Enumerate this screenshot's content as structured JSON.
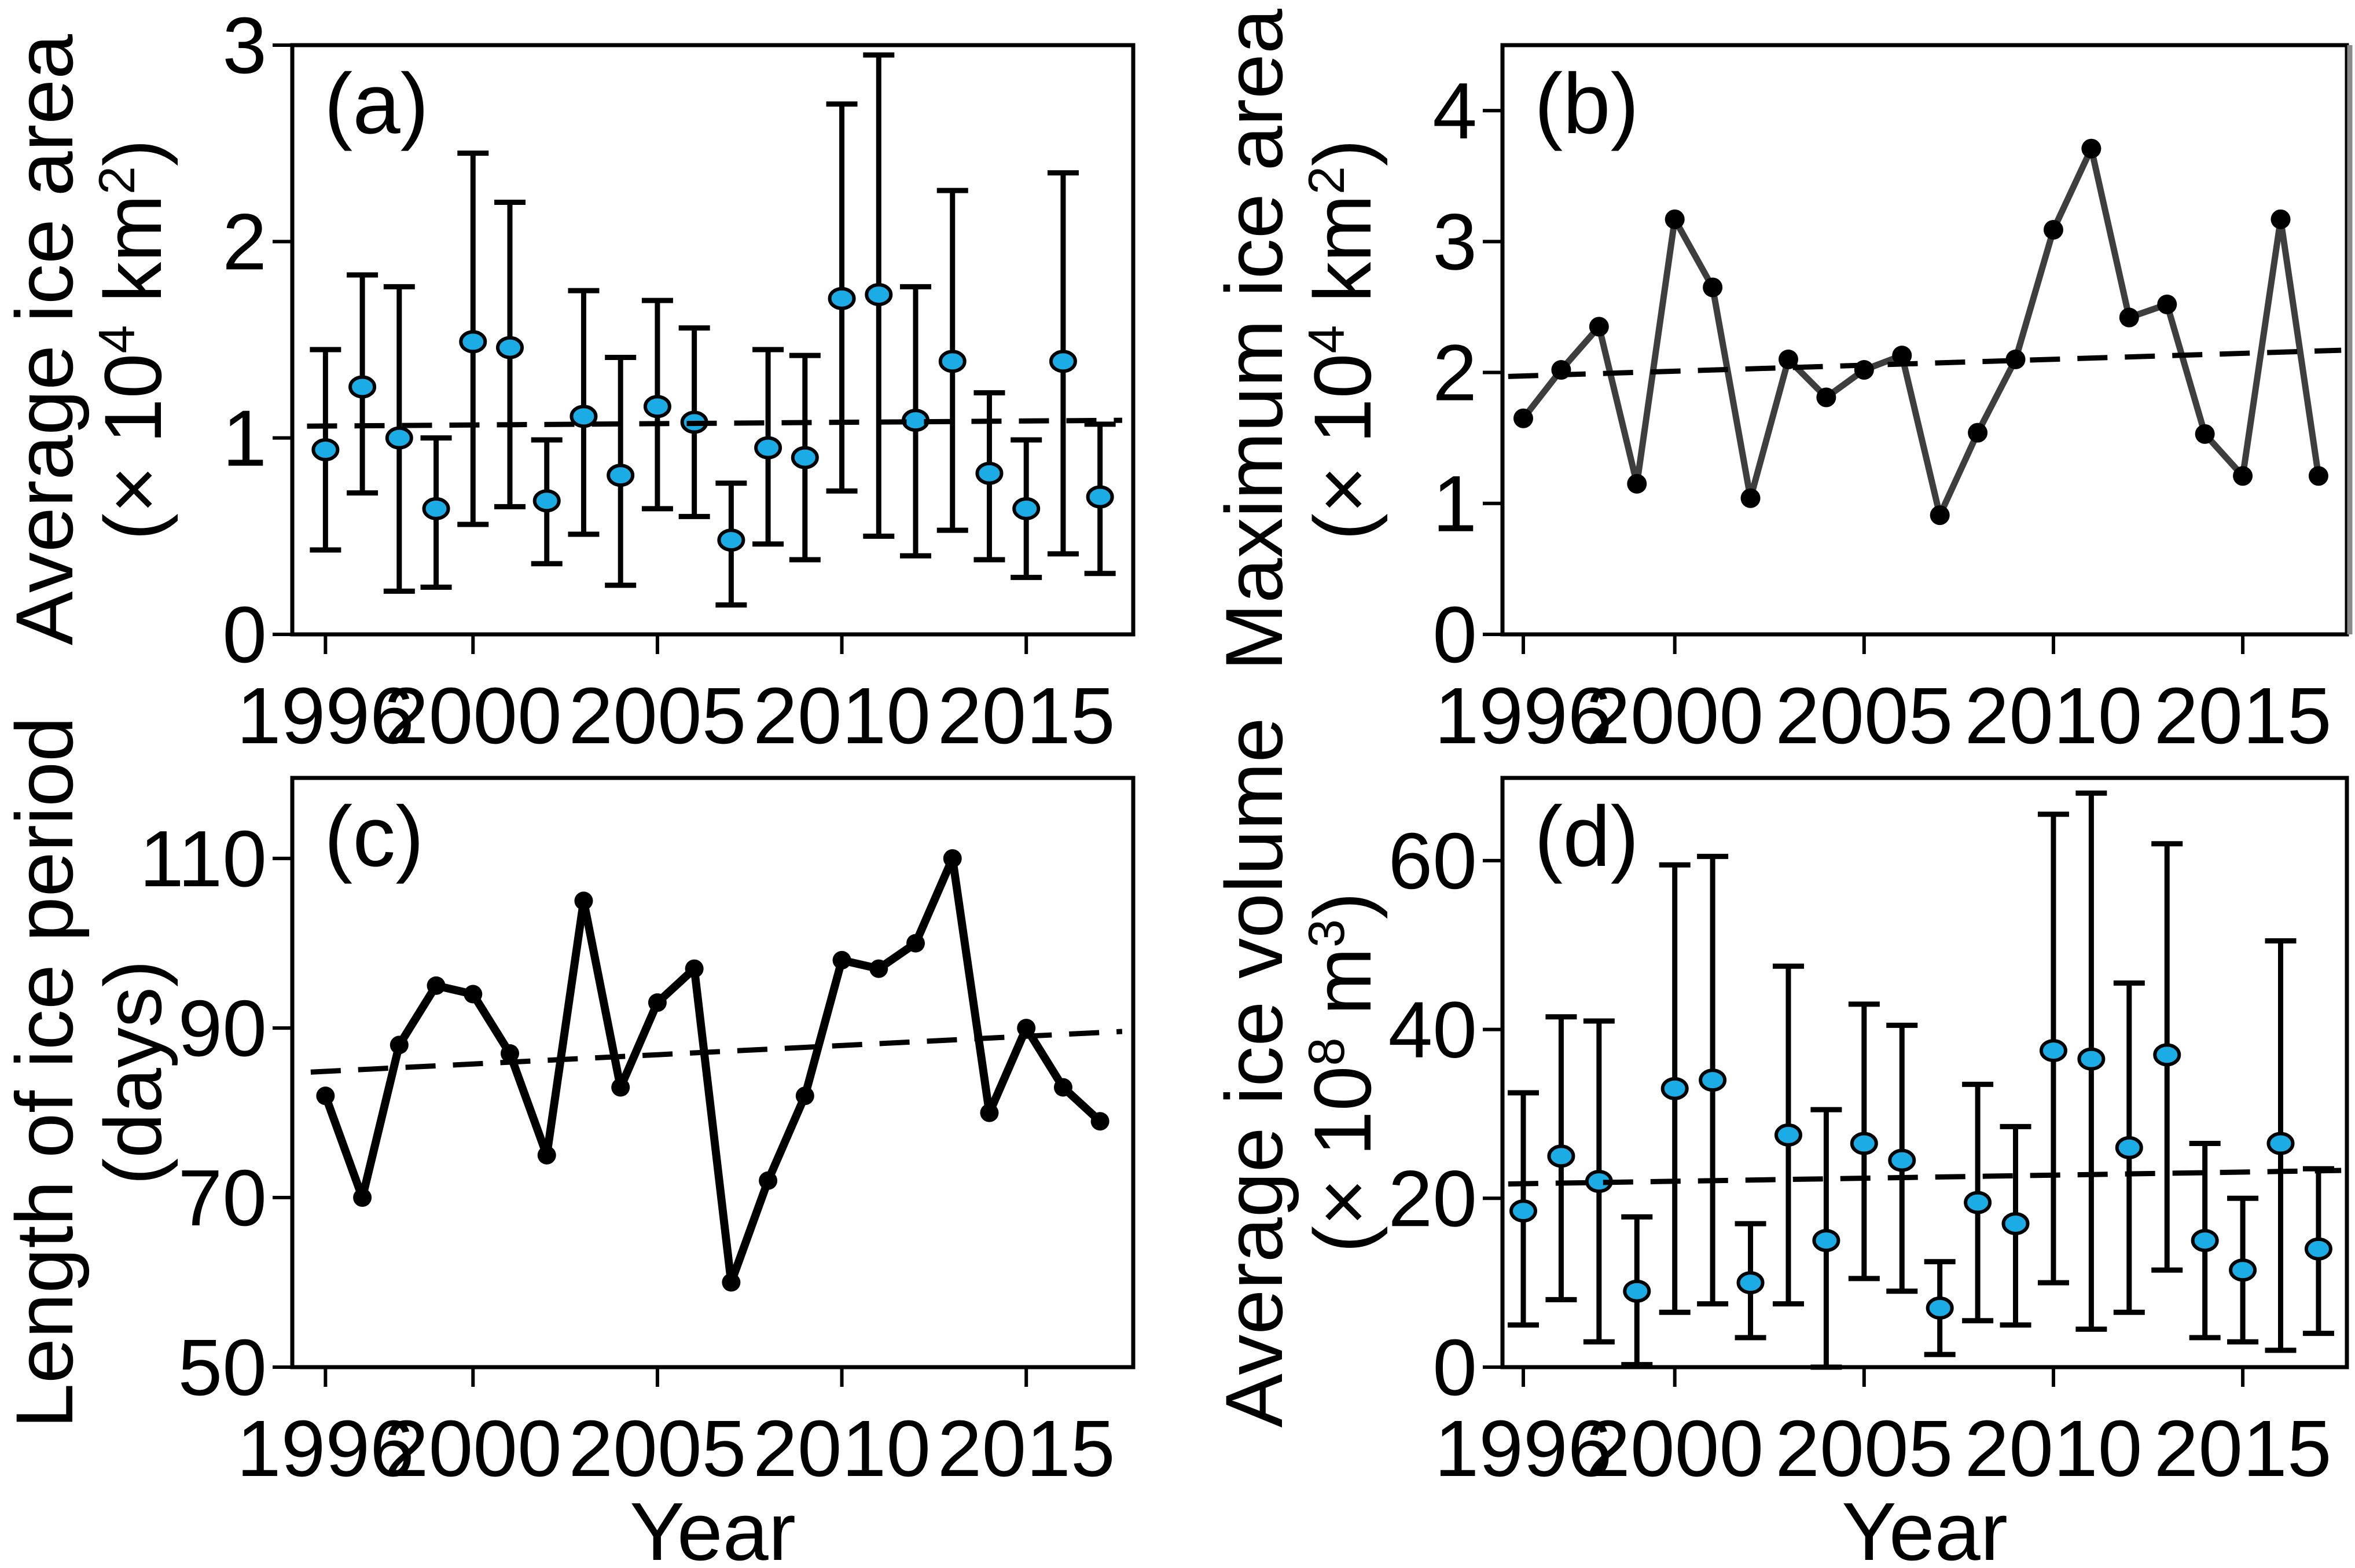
{
  "figure": {
    "xlabel": "Year"
  },
  "colors": {
    "marker_blue": "#1BACE6",
    "line_dark": "#3E3E3E",
    "black": "#000000",
    "frame": "#000000",
    "frame_gray": "#8A8A8A",
    "background": "#FFFFFF"
  },
  "chart_data": [
    {
      "id": "a",
      "label": "(a)",
      "type": "scatter",
      "ylabel_lines": [
        "Average ice area",
        [
          {
            "t": "(× 10"
          },
          {
            "t": "4",
            "sup": true
          },
          {
            "t": " km"
          },
          {
            "t": "2",
            "sup": true
          },
          {
            "t": ")"
          }
        ]
      ],
      "years": [
        1996,
        1997,
        1998,
        1999,
        2000,
        2001,
        2002,
        2003,
        2004,
        2005,
        2006,
        2007,
        2008,
        2009,
        2010,
        2011,
        2012,
        2013,
        2014,
        2015,
        2016,
        2017
      ],
      "values": [
        0.94,
        1.26,
        1.0,
        0.64,
        1.49,
        1.46,
        0.68,
        1.11,
        0.81,
        1.16,
        1.08,
        0.48,
        0.95,
        0.9,
        1.71,
        1.73,
        1.09,
        1.39,
        0.82,
        0.64,
        1.39,
        0.7
      ],
      "err_lo": [
        0.43,
        0.72,
        0.22,
        0.24,
        0.56,
        0.65,
        0.36,
        0.51,
        0.25,
        0.64,
        0.6,
        0.15,
        0.46,
        0.38,
        0.73,
        0.5,
        0.4,
        0.53,
        0.38,
        0.29,
        0.41,
        0.31
      ],
      "err_hi": [
        1.45,
        1.83,
        1.77,
        1.0,
        2.45,
        2.2,
        0.99,
        1.75,
        1.41,
        1.7,
        1.56,
        0.77,
        1.45,
        1.42,
        2.7,
        2.95,
        1.77,
        2.26,
        1.23,
        0.99,
        2.35,
        1.07
      ],
      "trend": {
        "x1": 1995.5,
        "y1": 1.06,
        "x2": 2017.6,
        "y2": 1.09
      },
      "ylim": [
        0,
        3
      ],
      "yticks": [
        0,
        1,
        2,
        3
      ],
      "xticks": [
        1996,
        2000,
        2005,
        2010,
        2015
      ],
      "xlim": [
        1995.1,
        2017.9
      ],
      "marker": "blue-ellipse",
      "grid": false,
      "legend": null
    },
    {
      "id": "b",
      "label": "(b)",
      "type": "line",
      "ylabel_lines": [
        "Maximum ice area",
        [
          {
            "t": "(× 10"
          },
          {
            "t": "4",
            "sup": true
          },
          {
            "t": " km"
          },
          {
            "t": "2",
            "sup": true
          },
          {
            "t": ")"
          }
        ]
      ],
      "years": [
        1996,
        1997,
        1998,
        1999,
        2000,
        2001,
        2002,
        2003,
        2004,
        2005,
        2006,
        2007,
        2008,
        2009,
        2010,
        2011,
        2012,
        2013,
        2014,
        2015,
        2016,
        2017
      ],
      "values": [
        1.65,
        2.02,
        2.35,
        1.15,
        3.17,
        2.65,
        1.04,
        2.1,
        1.81,
        2.02,
        2.13,
        0.91,
        1.54,
        2.1,
        3.09,
        3.71,
        2.42,
        2.52,
        1.53,
        1.21,
        3.17,
        1.21
      ],
      "trend": {
        "x1": 1995.6,
        "y1": 1.97,
        "x2": 2017.6,
        "y2": 2.17
      },
      "ylim": [
        0,
        4.5
      ],
      "yticks": [
        0,
        1,
        2,
        3,
        4
      ],
      "xticks": [
        1996,
        2000,
        2005,
        2010,
        2015
      ],
      "xlim": [
        1995.45,
        2017.75
      ],
      "marker": "black-circle",
      "line_color": "#3E3E3E",
      "line_width": 11,
      "marker_r": 17,
      "grid": false,
      "legend": null
    },
    {
      "id": "c",
      "label": "(c)",
      "type": "line",
      "ylabel_lines": [
        "Length of ice period",
        "(days)"
      ],
      "years": [
        1996,
        1997,
        1998,
        1999,
        2000,
        2001,
        2002,
        2003,
        2004,
        2005,
        2006,
        2007,
        2008,
        2009,
        2010,
        2011,
        2012,
        2013,
        2014,
        2015,
        2016,
        2017
      ],
      "values": [
        82,
        70,
        88,
        95,
        94,
        87,
        75,
        105,
        83,
        93,
        97,
        60,
        72,
        82,
        98,
        97,
        100,
        110,
        80,
        90,
        83,
        79
      ],
      "trend": {
        "x1": 1995.6,
        "y1": 84.8,
        "x2": 2017.6,
        "y2": 89.6
      },
      "ylim": [
        50,
        119.5
      ],
      "yticks": [
        50,
        70,
        90,
        110
      ],
      "xticks": [
        1996,
        2000,
        2005,
        2010,
        2015
      ],
      "xlim": [
        1995.1,
        2017.9
      ],
      "marker": "black-circle",
      "line_color": "#000000",
      "line_width": 14,
      "marker_r": 16,
      "grid": false,
      "legend": null
    },
    {
      "id": "d",
      "label": "(d)",
      "type": "scatter",
      "ylabel_lines": [
        "Average ice volume",
        [
          {
            "t": "(× 10"
          },
          {
            "t": "8",
            "sup": true
          },
          {
            "t": " m"
          },
          {
            "t": "3",
            "sup": true
          },
          {
            "t": ")"
          }
        ]
      ],
      "years": [
        1996,
        1997,
        1998,
        1999,
        2000,
        2001,
        2002,
        2003,
        2004,
        2005,
        2006,
        2007,
        2008,
        2009,
        2010,
        2011,
        2012,
        2013,
        2014,
        2015,
        2016,
        2017
      ],
      "values": [
        18.5,
        25,
        22,
        9,
        33,
        34,
        10,
        27.5,
        15,
        26.5,
        24.5,
        7,
        19.5,
        17,
        37.5,
        36.5,
        26,
        37,
        15,
        11.5,
        26.5,
        14
      ],
      "err_lo": [
        5,
        8,
        3,
        0.3,
        6.5,
        7.5,
        3.5,
        7.5,
        0,
        10.5,
        9,
        1.5,
        5.5,
        5,
        10,
        4.5,
        6.5,
        11.5,
        3.5,
        3,
        2,
        4
      ],
      "err_hi": [
        32.5,
        41.5,
        41,
        17.8,
        59.5,
        60.5,
        17,
        47.5,
        30.5,
        43,
        40.5,
        12.5,
        33.5,
        28.5,
        65.5,
        68,
        45.5,
        62,
        26.5,
        20,
        50.5,
        23.5
      ],
      "trend": {
        "x1": 1995.6,
        "y1": 21.7,
        "x2": 2017.6,
        "y2": 23.3
      },
      "ylim": [
        0,
        69.8
      ],
      "yticks": [
        0,
        20,
        40,
        60
      ],
      "xticks": [
        1996,
        2000,
        2005,
        2010,
        2015
      ],
      "xlim": [
        1995.45,
        2017.75
      ],
      "marker": "blue-ellipse",
      "grid": false,
      "legend": null
    }
  ]
}
